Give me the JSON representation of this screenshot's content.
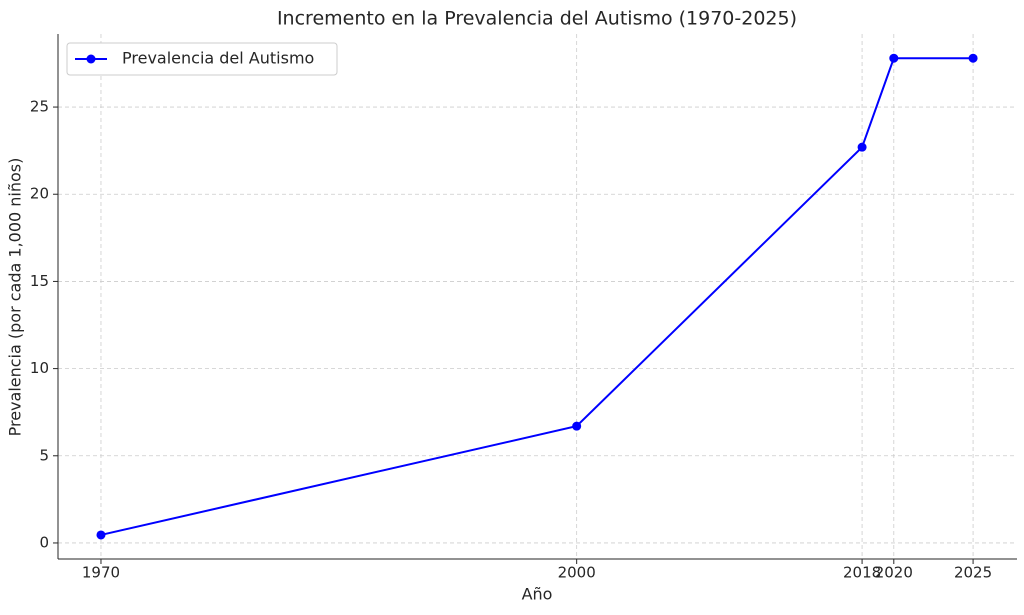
{
  "chart_data": {
    "type": "line",
    "title": "Incremento en la Prevalencia del Autismo (1970-2025)",
    "x_label": "Año",
    "y_label": "Prevalencia (por cada 1,000 niños)",
    "x": [
      1970,
      2000,
      2018,
      2020,
      2025
    ],
    "series": [
      {
        "name": "Prevalencia del Autismo",
        "color": "#0000ff",
        "values": [
          0.46,
          6.7,
          22.7,
          27.8,
          27.8
        ]
      }
    ],
    "xlim": [
      1967.29,
      2027.77
    ],
    "xticks": [
      1970,
      2000,
      2018,
      2020,
      2025
    ],
    "ylim": [
      -0.92,
      29.19
    ],
    "yticks": [
      0,
      5,
      10,
      15,
      20,
      25
    ],
    "grid": true,
    "legend": "upper left"
  }
}
